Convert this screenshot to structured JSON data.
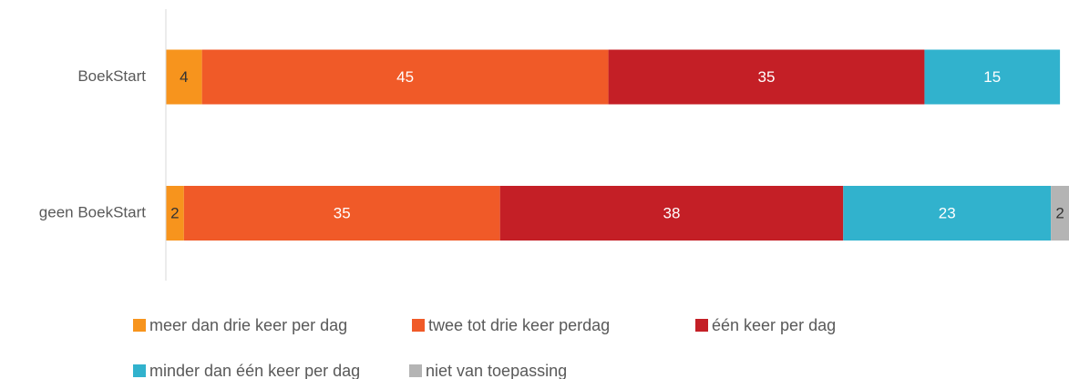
{
  "chart_data": {
    "type": "stacked_bar_horizontal_percent",
    "categories": [
      "BoekStart",
      "geen BoekStart"
    ],
    "series": [
      {
        "name": "meer dan drie keer per dag",
        "color": "#f7941d",
        "values": [
          4,
          2
        ]
      },
      {
        "name": "twee tot drie keer perdag",
        "color": "#f05a28",
        "values": [
          45,
          35
        ]
      },
      {
        "name": "één keer per dag",
        "color": "#c41f26",
        "values": [
          35,
          38
        ]
      },
      {
        "name": "minder dan één keer per dag",
        "color": "#31b2cd",
        "values": [
          15,
          23
        ]
      },
      {
        "name": "niet van toepassing",
        "color": "#b4b4b4",
        "values": [
          null,
          2
        ]
      }
    ],
    "xlim": [
      0,
      100
    ],
    "legend": "bottom"
  }
}
